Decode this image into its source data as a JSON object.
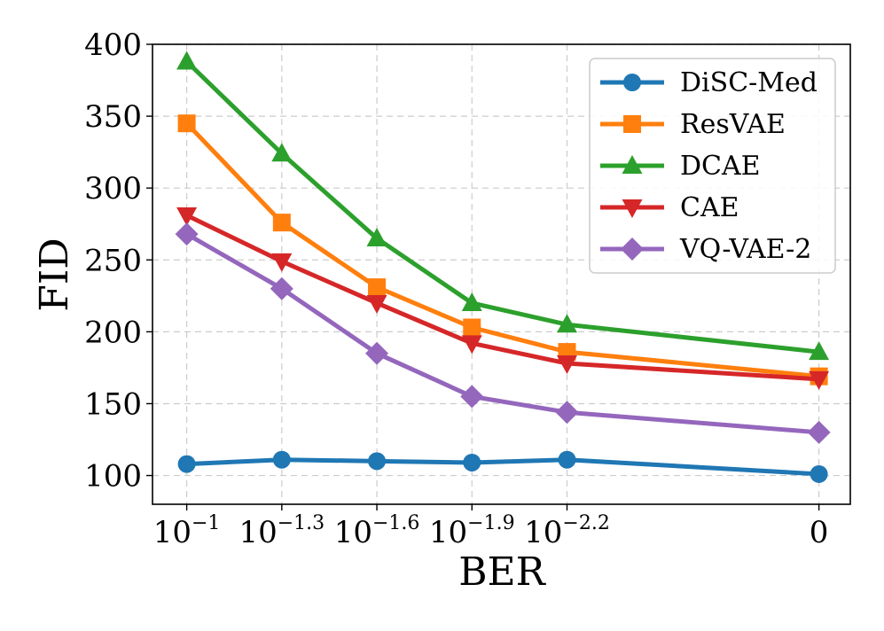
{
  "chart_data": {
    "type": "line",
    "title": "",
    "xlabel": "BER",
    "ylabel": "FID",
    "ylim": [
      80,
      400
    ],
    "yticks": [
      "100",
      "150",
      "200",
      "250",
      "300",
      "350",
      "400"
    ],
    "grid": true,
    "legend_position": "top-right",
    "x": [
      {
        "base": "10",
        "exp": "−1"
      },
      {
        "base": "10",
        "exp": "−1.3"
      },
      {
        "base": "10",
        "exp": "−1.6"
      },
      {
        "base": "10",
        "exp": "−1.9"
      },
      {
        "base": "10",
        "exp": "−2.2"
      },
      {
        "base": "0",
        "exp": ""
      }
    ],
    "x_positions": [
      1,
      2,
      3,
      4,
      5,
      7.65
    ],
    "series": [
      {
        "name": "DiSC-Med",
        "color": "#1f77b4",
        "marker": "circle",
        "values": [
          108,
          111,
          110,
          109,
          111,
          101
        ]
      },
      {
        "name": "ResVAE",
        "color": "#ff7f0e",
        "marker": "square",
        "values": [
          345,
          276,
          231,
          203,
          186,
          169
        ]
      },
      {
        "name": "DCAE",
        "color": "#2ca02c",
        "marker": "triangle-up",
        "values": [
          388,
          324,
          265,
          220,
          205,
          186
        ]
      },
      {
        "name": "CAE",
        "color": "#d62728",
        "marker": "triangle-down",
        "values": [
          281,
          249,
          220,
          192,
          178,
          167
        ]
      },
      {
        "name": "VQ-VAE-2",
        "color": "#9467bd",
        "marker": "diamond",
        "values": [
          268,
          230,
          185,
          155,
          144,
          130
        ]
      }
    ]
  }
}
